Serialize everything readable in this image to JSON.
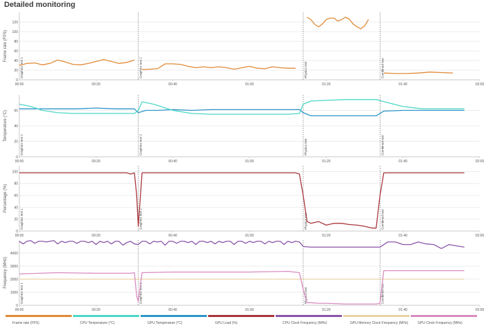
{
  "page": {
    "title": "Detailed monitoring"
  },
  "colors": {
    "frame_rate": "#e08a37",
    "cpu_temp": "#4cd7c7",
    "gpu_temp": "#2e95c9",
    "gpu_load": "#a8353a",
    "cpu_clock": "#8a55a8",
    "gpu_mem_clock": "#e9d3a6",
    "gpu_clock": "#d98bc0"
  },
  "legend": [
    {
      "label": "Frame rate (FPS)",
      "color": "#e08a37"
    },
    {
      "label": "CPU Temperature (°C)",
      "color": "#4cd7c7"
    },
    {
      "label": "GPU Temperature (°C)",
      "color": "#2e95c9"
    },
    {
      "label": "GPU Load (%)",
      "color": "#a8353a"
    },
    {
      "label": "CPU Clock Frequency (MHz)",
      "color": "#8a55a8"
    },
    {
      "label": "GPU Memory Clock Frequency (MHz)",
      "color": "#e9d3a6"
    },
    {
      "label": "GPU Clock Frequency (MHz)",
      "color": "#d98bc0"
    }
  ],
  "chart_data": [
    {
      "type": "line",
      "ylabel": "Frame rate (FPS)",
      "xlim": [
        0,
        120
      ],
      "ylim": [
        0,
        140
      ],
      "yticks": [
        0,
        20,
        40,
        60,
        80,
        100,
        120
      ],
      "xticks": [
        "00:00",
        "00:20",
        "00:40",
        "01:00",
        "01:20",
        "01:40",
        "02:00"
      ],
      "markers": [
        {
          "t": 0,
          "label": "Graphics test 1"
        },
        {
          "t": 31,
          "label": "Graphics test 2"
        },
        {
          "t": 74,
          "label": "Physics test"
        },
        {
          "t": 94,
          "label": "Combined test"
        }
      ],
      "series": [
        {
          "name": "Frame rate (FPS)",
          "color": "#e08a37",
          "segments": [
            {
              "x": [
                0,
                2,
                4,
                6,
                8,
                10,
                12,
                14,
                16,
                18,
                20,
                22,
                24,
                26,
                28,
                30
              ],
              "y": [
                30,
                34,
                35,
                31,
                34,
                41,
                37,
                32,
                31,
                34,
                38,
                42,
                38,
                34,
                36,
                41
              ]
            },
            {
              "x": [
                32,
                34,
                36,
                38,
                40,
                42,
                44,
                46,
                48,
                50,
                52,
                54,
                56,
                58,
                60,
                62,
                64,
                66,
                68,
                70,
                72
              ],
              "y": [
                21,
                22,
                23,
                33,
                33,
                32,
                28,
                25,
                27,
                25,
                27,
                25,
                22,
                25,
                28,
                24,
                23,
                27,
                25,
                24,
                24
              ]
            },
            {
              "x": [
                75,
                76,
                77,
                78,
                79,
                80,
                81,
                82,
                83,
                84,
                85,
                86,
                87,
                88,
                89,
                90,
                91
              ],
              "y": [
                130,
                125,
                115,
                110,
                116,
                125,
                128,
                128,
                122,
                125,
                130,
                126,
                116,
                110,
                106,
                112,
                125
              ]
            },
            {
              "x": [
                95,
                98,
                101,
                104,
                107,
                110,
                113
              ],
              "y": [
                14,
                13,
                13,
                14,
                16,
                15,
                14
              ]
            }
          ]
        }
      ]
    },
    {
      "type": "line",
      "ylabel": "Temperature (°C)",
      "xlim": [
        0,
        120
      ],
      "ylim": [
        0,
        80
      ],
      "yticks": [
        0,
        20,
        40,
        60
      ],
      "xticks": [
        "00:00",
        "00:20",
        "00:40",
        "01:00",
        "01:20",
        "01:40",
        "02:00"
      ],
      "markers": [
        {
          "t": 0,
          "label": "Graphics test 1"
        },
        {
          "t": 31,
          "label": "Graphics test 2"
        },
        {
          "t": 74,
          "label": "Physics test"
        },
        {
          "t": 94,
          "label": "Combined test"
        }
      ],
      "series": [
        {
          "name": "GPU Temperature (°C)",
          "color": "#2e95c9",
          "segments": [
            {
              "x": [
                0,
                5,
                10,
                15,
                20,
                25,
                30,
                31,
                33,
                36,
                40,
                45,
                50,
                55,
                60,
                65,
                70,
                73,
                74,
                76,
                80,
                85,
                90,
                93,
                95,
                100,
                105,
                110,
                116
              ],
              "y": [
                62,
                62,
                62,
                62,
                63,
                62,
                62,
                57,
                60,
                60,
                61,
                60,
                61,
                61,
                61,
                61,
                61,
                61,
                57,
                53,
                53,
                53,
                53,
                53,
                59,
                60,
                60,
                60,
                60
              ]
            }
          ]
        },
        {
          "name": "CPU Temperature (°C)",
          "color": "#4cd7c7",
          "segments": [
            {
              "x": [
                0,
                3,
                6,
                10,
                14,
                18,
                22,
                26,
                30,
                31,
                32,
                35,
                40,
                45,
                50,
                55,
                60,
                65,
                70,
                73,
                74,
                76,
                80,
                85,
                90,
                93,
                96,
                100,
                105,
                110,
                116
              ],
              "y": [
                68,
                65,
                60,
                57,
                56,
                56,
                56,
                56,
                56,
                60,
                71,
                68,
                60,
                56,
                55,
                55,
                55,
                55,
                55,
                56,
                68,
                72,
                73,
                74,
                74,
                74,
                70,
                65,
                62,
                62,
                62
              ]
            }
          ]
        }
      ]
    },
    {
      "type": "line",
      "ylabel": "Percentage (%)",
      "xlim": [
        0,
        120
      ],
      "ylim": [
        0,
        110
      ],
      "yticks": [
        0,
        20,
        40,
        60,
        80,
        100
      ],
      "xticks": [
        "00:00",
        "00:20",
        "00:40",
        "01:00",
        "01:20",
        "01:40",
        "02:00"
      ],
      "markers": [
        {
          "t": 0,
          "label": "Graphics test 1"
        },
        {
          "t": 31,
          "label": "Graphics test 2"
        },
        {
          "t": 74,
          "label": "Physics test"
        },
        {
          "t": 94,
          "label": "Combined test"
        }
      ],
      "series": [
        {
          "name": "GPU Load (%)",
          "color": "#a8353a",
          "segments": [
            {
              "x": [
                0,
                5,
                10,
                15,
                20,
                25,
                28,
                29,
                30,
                30.6,
                31,
                32,
                36,
                40,
                45,
                50,
                55,
                60,
                65,
                70,
                72,
                73,
                74,
                75,
                76,
                78,
                80,
                82,
                84,
                86,
                88,
                90,
                92,
                93,
                94,
                95,
                100,
                105,
                110,
                116
              ],
              "y": [
                98,
                98,
                98,
                98,
                98,
                98,
                98,
                96,
                98,
                60,
                8,
                98,
                98,
                98,
                98,
                98,
                98,
                98,
                98,
                98,
                98,
                96,
                60,
                16,
                13,
                16,
                10,
                13,
                13,
                11,
                10,
                8,
                5,
                5,
                60,
                98,
                98,
                98,
                98,
                98
              ]
            }
          ]
        }
      ]
    },
    {
      "type": "line",
      "ylabel": "Frequency (MHz)",
      "xlim": [
        0,
        120
      ],
      "ylim": [
        0,
        5000
      ],
      "yticks": [
        0,
        1000,
        2000,
        3000,
        4000
      ],
      "xticks": [
        "00:00",
        "00:20",
        "00:40",
        "01:00",
        "01:20",
        "01:40",
        "02:00"
      ],
      "markers": [
        {
          "t": 0,
          "label": "Graphics test 1"
        },
        {
          "t": 31,
          "label": "Graphics test 2"
        },
        {
          "t": 74,
          "label": "Physics test"
        },
        {
          "t": 94,
          "label": "Combined test"
        }
      ],
      "series": [
        {
          "name": "CPU Clock Frequency (MHz)",
          "color": "#8a55a8",
          "segments": [
            {
              "x": [
                0,
                1,
                2,
                3,
                4,
                5,
                6,
                7,
                8,
                9,
                10,
                11,
                12,
                13,
                14,
                15,
                16,
                17,
                18,
                19,
                20,
                21,
                22,
                23,
                24,
                25,
                26,
                27,
                28,
                29,
                30,
                31,
                32,
                33,
                34,
                35,
                36,
                37,
                38,
                39,
                40,
                41,
                42,
                43,
                44,
                45,
                46,
                47,
                48,
                49,
                50,
                51,
                52,
                53,
                54,
                55,
                56,
                57,
                58,
                59,
                60,
                61,
                62,
                63,
                64,
                65,
                66,
                67,
                68,
                69,
                70,
                71,
                72,
                73,
                74,
                76,
                80,
                85,
                90,
                93,
                94,
                96,
                98,
                100,
                102,
                104,
                106,
                108,
                110,
                112,
                114,
                116
              ],
              "y": [
                4900,
                4700,
                4900,
                4950,
                4750,
                4900,
                4900,
                4850,
                4900,
                4950,
                4700,
                4900,
                4800,
                4900,
                4900,
                4750,
                4900,
                4900,
                4800,
                4900,
                4650,
                4900,
                4800,
                4900,
                4700,
                4900,
                4900,
                4600,
                4800,
                4900,
                4700,
                4650,
                4900,
                4900,
                4700,
                4900,
                4850,
                4900,
                4600,
                4900,
                4900,
                4750,
                4900,
                4900,
                4800,
                4900,
                4650,
                4900,
                4900,
                4800,
                4900,
                4700,
                4900,
                4800,
                4900,
                4900,
                4650,
                4900,
                4900,
                4750,
                4900,
                4800,
                4900,
                4900,
                4700,
                4900,
                4800,
                4900,
                4900,
                4650,
                4900,
                4800,
                4900,
                4850,
                4500,
                4450,
                4450,
                4450,
                4450,
                4450,
                4450,
                4850,
                4850,
                4650,
                4650,
                4850,
                4700,
                4650,
                4350,
                4650,
                4550,
                4450
              ]
            }
          ]
        },
        {
          "name": "GPU Memory Clock Frequency (MHz)",
          "color": "#e9d3a6",
          "segments": [
            {
              "x": [
                0,
                116
              ],
              "y": [
                2000,
                2000
              ]
            }
          ]
        },
        {
          "name": "GPU Clock Frequency (MHz)",
          "color": "#d98bc0",
          "segments": [
            {
              "x": [
                0,
                10,
                20,
                29,
                30,
                30.6,
                31,
                32,
                40,
                50,
                60,
                70,
                73,
                74,
                75,
                76,
                78,
                80,
                85,
                90,
                93,
                94,
                95,
                100,
                105,
                110,
                116
              ],
              "y": [
                2400,
                2500,
                2450,
                2450,
                2500,
                700,
                300,
                2500,
                2550,
                2550,
                2550,
                2600,
                2500,
                1200,
                200,
                200,
                150,
                150,
                100,
                100,
                100,
                150,
                2650,
                2650,
                2650,
                2650,
                2650
              ]
            }
          ]
        }
      ]
    }
  ]
}
